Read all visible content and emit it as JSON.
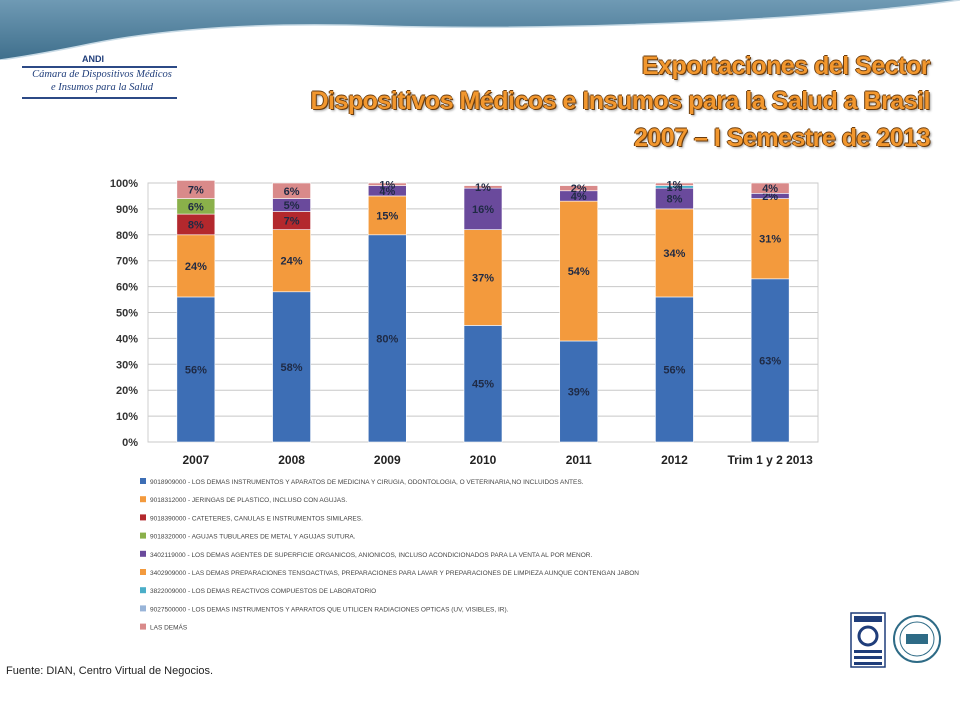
{
  "logo": {
    "brand": "ANDI",
    "line1": "Cámara de Dispositivos Médicos",
    "line2": "e Insumos para la Salud"
  },
  "title": {
    "line1": "Exportaciones del Sector",
    "line2": "Dispositivos Médicos e Insumos para la Salud a Brasil",
    "line3": "2007 – I Semestre de 2013"
  },
  "source": "Fuente: DIAN, Centro Virtual de Negocios.",
  "colors": {
    "header_band": "#4f7f9c",
    "series": [
      "#3d6eb5",
      "#f39a3d",
      "#b3282d",
      "#8ab04a",
      "#6a4a9c",
      "#f39a3d",
      "#4aaec8",
      "#98b4d8",
      "#d98a8a"
    ]
  },
  "chart_data": {
    "type": "bar",
    "stacked": true,
    "categories": [
      "2007",
      "2008",
      "2009",
      "2010",
      "2011",
      "2012",
      "Trim 1 y 2 2013"
    ],
    "ylim": [
      0,
      100
    ],
    "yticks": [
      "0%",
      "10%",
      "20%",
      "30%",
      "40%",
      "50%",
      "60%",
      "70%",
      "80%",
      "90%",
      "100%"
    ],
    "grid": true,
    "legend_position": "bottom",
    "series": [
      {
        "name": "9018909000 - LOS DEMAS INSTRUMENTOS Y APARATOS DE MEDICINA Y CIRUGIA, ODONTOLOGIA, O VETERINARIA,NO INCLUIDOS ANTES.",
        "values": [
          56,
          58,
          80,
          45,
          39,
          56,
          63
        ]
      },
      {
        "name": "9018312000 - JERINGAS DE PLASTICO, INCLUSO CON AGUJAS.",
        "values": [
          24,
          24,
          15,
          37,
          54,
          34,
          31
        ]
      },
      {
        "name": "9018390000 - CATETERES, CANULAS E INSTRUMENTOS SIMILARES.",
        "values": [
          8,
          7,
          0,
          0,
          0,
          0,
          0
        ]
      },
      {
        "name": "9018320000 - AGUJAS TUBULARES DE METAL Y AGUJAS SUTURA.",
        "values": [
          6,
          0,
          0,
          0,
          0,
          0,
          0
        ]
      },
      {
        "name": "3402119000 - LOS DEMAS AGENTES DE SUPERFICIE ORGANICOS, ANIONICOS, INCLUSO ACONDICIONADOS PARA LA VENTA AL POR MENOR.",
        "values": [
          0,
          5,
          4,
          16,
          4,
          8,
          2
        ]
      },
      {
        "name": "3402909000 - LAS DEMAS PREPARACIONES TENSOACTIVAS, PREPARACIONES PARA LAVAR Y PREPARACIONES DE LIMPIEZA AUNQUE CONTENGAN JABON",
        "values": [
          0,
          0,
          0,
          0,
          0,
          0,
          0
        ]
      },
      {
        "name": "3822009000 - LOS DEMAS REACTIVOS COMPUESTOS DE LABORATORIO",
        "values": [
          0,
          0,
          0,
          0,
          0,
          1,
          0
        ]
      },
      {
        "name": "9027500000 - LOS DEMAS INSTRUMENTOS Y APARATOS QUE UTILICEN RADIACIONES OPTICAS (UV, VISIBLES, IR).",
        "values": [
          0,
          0,
          0,
          0,
          0,
          0,
          0
        ]
      },
      {
        "name": "LAS DEMÁS",
        "values": [
          7,
          6,
          1,
          1,
          2,
          1,
          4
        ]
      }
    ],
    "bar_labels": [
      [
        "56%",
        "24%",
        "8%",
        "6%",
        "",
        "",
        "",
        "",
        "7%"
      ],
      [
        "58%",
        "24%",
        "7%",
        "",
        "5%",
        "",
        "",
        "",
        "6%"
      ],
      [
        "80%",
        "15%",
        "",
        "",
        "4%",
        "",
        "",
        "",
        "1%"
      ],
      [
        "45%",
        "37%",
        "",
        "",
        "16%",
        "",
        "",
        "",
        "1%"
      ],
      [
        "39%",
        "54%",
        "",
        "",
        "4%",
        "",
        "",
        "",
        "2%"
      ],
      [
        "56%",
        "34%",
        "",
        "",
        "8%",
        "",
        "1%",
        "",
        "1%"
      ],
      [
        "63%",
        "31%",
        "",
        "",
        "2%",
        "",
        "",
        "",
        "4%"
      ]
    ]
  }
}
